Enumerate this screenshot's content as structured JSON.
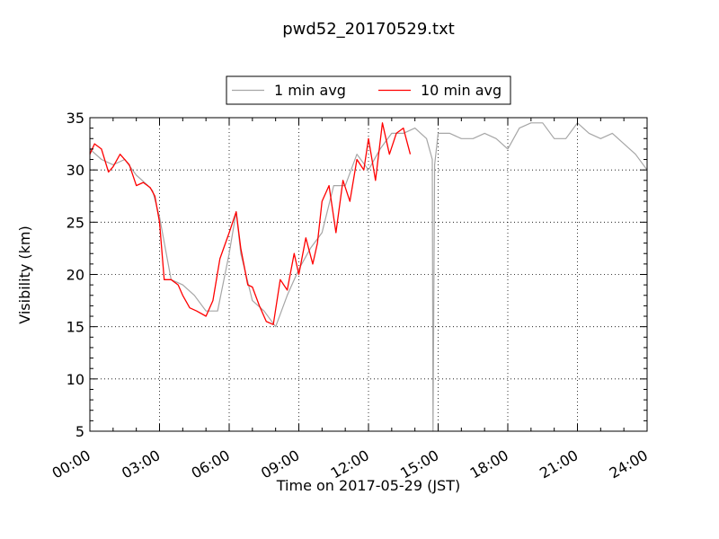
{
  "chart_data": {
    "type": "line",
    "title": "pwd52_20170529.txt",
    "xlabel": "Time on 2017-05-29 (JST)",
    "ylabel": "Visibility (km)",
    "x_unit": "hours",
    "xlim": [
      0,
      24
    ],
    "ylim": [
      5,
      35
    ],
    "xticks": [
      0,
      3,
      6,
      9,
      12,
      15,
      18,
      21,
      24
    ],
    "xtick_labels": [
      "00:00",
      "03:00",
      "06:00",
      "09:00",
      "12:00",
      "15:00",
      "18:00",
      "21:00",
      "24:00"
    ],
    "yticks": [
      5,
      10,
      15,
      20,
      25,
      30,
      35
    ],
    "ytick_labels": [
      "5",
      "10",
      "15",
      "20",
      "25",
      "30",
      "35"
    ],
    "grid": "dotted",
    "legend_position": "top-center",
    "series": [
      {
        "name": "1 min avg",
        "color": "#a6a6a6",
        "x": [
          0.0,
          0.5,
          1.0,
          1.5,
          2.0,
          2.5,
          2.7,
          3.0,
          3.5,
          4.0,
          4.5,
          5.0,
          5.5,
          6.0,
          6.3,
          6.5,
          7.0,
          7.5,
          8.0,
          8.5,
          9.0,
          9.5,
          10.0,
          10.5,
          11.0,
          11.5,
          12.0,
          12.5,
          13.0,
          13.5,
          14.0,
          14.5,
          14.75,
          14.78,
          14.85,
          15.0,
          15.5,
          16.0,
          16.5,
          17.0,
          17.5,
          18.0,
          18.5,
          19.0,
          19.5,
          20.0,
          20.5,
          21.0,
          21.5,
          22.0,
          22.5,
          23.0,
          23.5,
          24.0
        ],
        "y": [
          32.0,
          31.0,
          30.5,
          31.0,
          29.5,
          28.5,
          28.0,
          25.5,
          19.5,
          19.0,
          18.0,
          16.5,
          16.5,
          22.0,
          26.0,
          22.0,
          17.5,
          16.5,
          15.0,
          18.0,
          20.5,
          22.5,
          24.0,
          28.5,
          28.5,
          31.5,
          30.0,
          32.0,
          33.5,
          33.5,
          34.0,
          33.0,
          31.0,
          5.0,
          30.5,
          33.5,
          33.5,
          33.0,
          33.0,
          33.5,
          33.0,
          32.0,
          34.0,
          34.5,
          34.5,
          33.0,
          33.0,
          34.5,
          33.5,
          33.0,
          33.5,
          32.5,
          31.5,
          30.0
        ]
      },
      {
        "name": "10 min avg",
        "color": "#ff0000",
        "x": [
          0.0,
          0.2,
          0.5,
          0.8,
          1.0,
          1.3,
          1.7,
          2.0,
          2.3,
          2.6,
          2.8,
          3.0,
          3.2,
          3.5,
          3.8,
          4.0,
          4.3,
          4.6,
          5.0,
          5.3,
          5.6,
          6.0,
          6.3,
          6.5,
          6.8,
          7.0,
          7.3,
          7.6,
          7.9,
          8.2,
          8.5,
          8.8,
          9.0,
          9.3,
          9.6,
          9.8,
          10.0,
          10.3,
          10.6,
          10.9,
          11.2,
          11.5,
          11.8,
          12.0,
          12.3,
          12.6,
          12.9,
          13.2,
          13.5,
          13.8
        ],
        "y": [
          31.5,
          32.5,
          32.0,
          29.8,
          30.3,
          31.5,
          30.5,
          28.5,
          28.8,
          28.3,
          27.5,
          25.0,
          19.5,
          19.5,
          19.0,
          18.0,
          16.8,
          16.5,
          16.0,
          17.5,
          21.5,
          24.0,
          26.0,
          22.5,
          19.0,
          18.8,
          17.0,
          15.5,
          15.2,
          19.5,
          18.5,
          22.0,
          20.0,
          23.5,
          21.0,
          23.0,
          27.0,
          28.5,
          24.0,
          29.0,
          27.0,
          31.0,
          30.0,
          33.0,
          29.0,
          34.5,
          31.5,
          33.5,
          34.0,
          31.5
        ]
      }
    ]
  }
}
